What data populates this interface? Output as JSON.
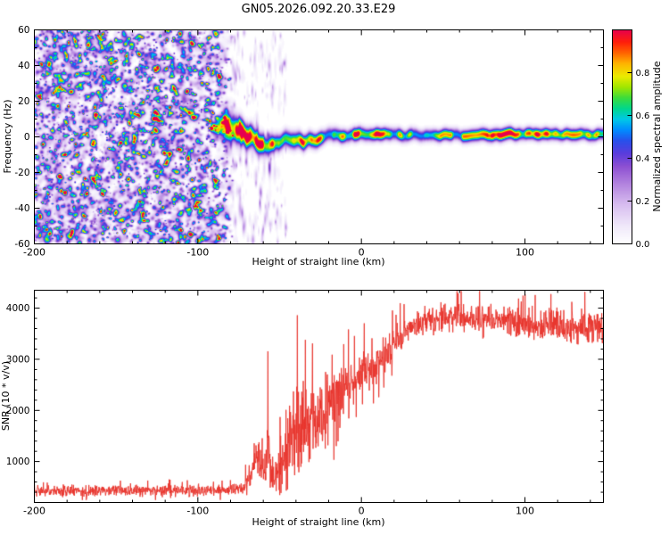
{
  "chart_data": [
    {
      "type": "heatmap",
      "title": "GN05.2026.092.20.33.E29",
      "xlabel": "Height of straight line (km)",
      "ylabel": "Frequency (Hz)",
      "xlim": [
        -200,
        148
      ],
      "ylim": [
        -60,
        60
      ],
      "xticks": [
        -200,
        -100,
        0,
        100
      ],
      "yticks": [
        -60,
        -40,
        -20,
        0,
        20,
        40,
        60
      ],
      "x_minor_step": 20,
      "y_minor_step": 10,
      "colorbar": {
        "label": "Normalized spectral amplitude",
        "ticks": [
          0,
          0.2,
          0.4,
          0.6,
          0.8
        ],
        "range": [
          0,
          1
        ],
        "colormap": [
          [
            0.0,
            "#ffffff"
          ],
          [
            0.08,
            "#f0e9fa"
          ],
          [
            0.18,
            "#d8bef0"
          ],
          [
            0.28,
            "#b282de"
          ],
          [
            0.36,
            "#8c50d2"
          ],
          [
            0.42,
            "#5a3cdc"
          ],
          [
            0.48,
            "#2850eb"
          ],
          [
            0.53,
            "#008cff"
          ],
          [
            0.58,
            "#00c8e6"
          ],
          [
            0.63,
            "#00d78c"
          ],
          [
            0.68,
            "#3cdc3c"
          ],
          [
            0.73,
            "#a0e600"
          ],
          [
            0.78,
            "#ebeb00"
          ],
          [
            0.84,
            "#ffb400"
          ],
          [
            0.89,
            "#ff6400"
          ],
          [
            0.94,
            "#ff1e0a"
          ],
          [
            1.0,
            "#e60050"
          ]
        ]
      },
      "noise_field": {
        "x_range": [
          -200,
          -78
        ],
        "taper_start": -88,
        "wash_count": 900,
        "speckle_count": 5200,
        "amp_max": 0.55,
        "sparse": {
          "x_range": [
            -80,
            -46
          ],
          "count": 260,
          "amp_max": 0.2
        }
      },
      "hotspots": [
        {
          "x": -126,
          "f": 10,
          "amp": 0.85,
          "r": 2.6
        },
        {
          "x": -129,
          "f": 7,
          "amp": 0.5,
          "r": 2.0
        },
        {
          "x": -123,
          "f": 12,
          "amp": 0.45,
          "r": 1.8
        },
        {
          "x": -173,
          "f": -20,
          "amp": 0.5,
          "r": 2.0
        },
        {
          "x": -152,
          "f": 38,
          "amp": 0.45,
          "r": 1.8
        },
        {
          "x": -110,
          "f": -42,
          "amp": 0.45,
          "r": 1.8
        }
      ],
      "echo_trace": {
        "start_km": -92,
        "wiggle": {
          "amp_far": 2.0,
          "amp_mid": 1.2,
          "amp_near": 0.8
        },
        "center_points": [
          [
            -92,
            7
          ],
          [
            -89,
            6.5
          ],
          [
            -86,
            6
          ],
          [
            -83,
            5
          ],
          [
            -80,
            4
          ],
          [
            -77,
            3
          ],
          [
            -74,
            2
          ],
          [
            -71,
            1
          ],
          [
            -68,
            0
          ],
          [
            -65,
            -1.5
          ],
          [
            -62,
            -2.5
          ],
          [
            -59,
            -3.5
          ],
          [
            -56,
            -4
          ],
          [
            -53,
            -4.5
          ],
          [
            -50,
            -4.5
          ],
          [
            -47,
            -4
          ],
          [
            -44,
            -3.5
          ],
          [
            -41,
            -3
          ],
          [
            -38,
            -2.5
          ],
          [
            -35,
            -2.5
          ],
          [
            -32,
            -2
          ],
          [
            -29,
            -1.5
          ],
          [
            -26,
            -1
          ],
          [
            -23,
            -1
          ],
          [
            -20,
            -0.5
          ],
          [
            -17,
            -0.5
          ],
          [
            -14,
            0
          ],
          [
            -11,
            0.5
          ],
          [
            -8,
            0.5
          ],
          [
            -5,
            1
          ],
          [
            -2,
            1
          ],
          [
            1,
            1.2
          ],
          [
            5,
            1
          ],
          [
            10,
            1.2
          ],
          [
            15,
            1
          ],
          [
            20,
            1.3
          ],
          [
            25,
            1
          ],
          [
            30,
            1.2
          ],
          [
            35,
            1
          ],
          [
            40,
            1.3
          ],
          [
            45,
            1
          ],
          [
            50,
            1.2
          ],
          [
            55,
            1
          ],
          [
            60,
            1.2
          ],
          [
            65,
            1
          ],
          [
            70,
            1.2
          ],
          [
            75,
            1
          ],
          [
            80,
            1.2
          ],
          [
            85,
            1
          ],
          [
            90,
            1.2
          ],
          [
            95,
            1
          ],
          [
            100,
            1.2
          ],
          [
            105,
            1
          ],
          [
            110,
            1.2
          ],
          [
            115,
            1
          ],
          [
            120,
            1.2
          ],
          [
            125,
            1
          ],
          [
            130,
            1.2
          ],
          [
            135,
            1
          ],
          [
            140,
            1.2
          ],
          [
            145,
            1
          ],
          [
            148,
            1
          ]
        ],
        "sigma_points": [
          [
            -92,
            2.5
          ],
          [
            -86,
            4
          ],
          [
            -82,
            5.5
          ],
          [
            -78,
            5
          ],
          [
            -74,
            4.5
          ],
          [
            -70,
            4
          ],
          [
            -66,
            4
          ],
          [
            -62,
            3.8
          ],
          [
            -58,
            3.5
          ],
          [
            -54,
            3.2
          ],
          [
            -50,
            3
          ],
          [
            -45,
            3
          ],
          [
            -40,
            3
          ],
          [
            -35,
            2.8
          ],
          [
            -30,
            2.7
          ],
          [
            -25,
            2.6
          ],
          [
            -20,
            2.5
          ],
          [
            -15,
            2.5
          ],
          [
            -10,
            2.4
          ],
          [
            -5,
            2.4
          ],
          [
            0,
            2.4
          ],
          [
            10,
            2.3
          ],
          [
            20,
            2.3
          ],
          [
            40,
            2.2
          ],
          [
            60,
            2.2
          ],
          [
            80,
            2.3
          ],
          [
            100,
            2.2
          ],
          [
            120,
            2.2
          ],
          [
            148,
            2.2
          ]
        ],
        "intensity_points": [
          [
            -92,
            0.55
          ],
          [
            -89,
            0.8
          ],
          [
            -86,
            0.95
          ],
          [
            -83,
            1.0
          ],
          [
            -80,
            0.95
          ],
          [
            -77,
            0.9
          ],
          [
            -74,
            0.95
          ],
          [
            -71,
            1.0
          ],
          [
            -68,
            0.95
          ],
          [
            -65,
            0.95
          ],
          [
            -62,
            0.9
          ],
          [
            -59,
            0.95
          ],
          [
            -56,
            1.0
          ],
          [
            -53,
            0.95
          ],
          [
            -50,
            0.95
          ],
          [
            -47,
            0.9
          ],
          [
            -44,
            0.95
          ],
          [
            -41,
            1.0
          ],
          [
            -38,
            0.95
          ],
          [
            -35,
            0.9
          ],
          [
            -32,
            0.8
          ],
          [
            -29,
            0.75
          ],
          [
            -26,
            0.8
          ],
          [
            -23,
            0.72
          ],
          [
            -20,
            0.7
          ],
          [
            -17,
            0.75
          ],
          [
            -14,
            0.7
          ],
          [
            -11,
            0.72
          ],
          [
            -8,
            0.78
          ],
          [
            -5,
            0.88
          ],
          [
            -2,
            0.95
          ],
          [
            1,
            0.95
          ],
          [
            4,
            0.9
          ],
          [
            7,
            0.88
          ],
          [
            10,
            0.85
          ],
          [
            13,
            0.78
          ],
          [
            16,
            0.72
          ],
          [
            19,
            0.7
          ],
          [
            22,
            0.72
          ],
          [
            25,
            0.7
          ],
          [
            28,
            0.68
          ],
          [
            31,
            0.7
          ],
          [
            34,
            0.72
          ],
          [
            37,
            0.7
          ],
          [
            40,
            0.68
          ],
          [
            43,
            0.7
          ],
          [
            46,
            0.72
          ],
          [
            49,
            0.7
          ],
          [
            52,
            0.68
          ],
          [
            55,
            0.7
          ],
          [
            58,
            0.72
          ],
          [
            61,
            0.7
          ],
          [
            64,
            0.72
          ],
          [
            67,
            0.7
          ],
          [
            70,
            0.68
          ],
          [
            73,
            0.7
          ],
          [
            76,
            0.75
          ],
          [
            79,
            0.82
          ],
          [
            82,
            0.9
          ],
          [
            85,
            0.95
          ],
          [
            88,
            0.92
          ],
          [
            91,
            0.85
          ],
          [
            94,
            0.78
          ],
          [
            97,
            0.72
          ],
          [
            100,
            0.7
          ],
          [
            103,
            0.75
          ],
          [
            106,
            0.85
          ],
          [
            109,
            0.92
          ],
          [
            112,
            0.88
          ],
          [
            115,
            0.78
          ],
          [
            118,
            0.72
          ],
          [
            121,
            0.7
          ],
          [
            124,
            0.68
          ],
          [
            127,
            0.7
          ],
          [
            130,
            0.72
          ],
          [
            133,
            0.7
          ],
          [
            136,
            0.68
          ],
          [
            139,
            0.7
          ],
          [
            142,
            0.72
          ],
          [
            145,
            0.7
          ],
          [
            148,
            0.68
          ]
        ]
      }
    },
    {
      "type": "line",
      "xlabel": "Height of straight line (km)",
      "ylabel": "SNR (10 * v/v)",
      "xlim": [
        -200,
        148
      ],
      "ylim": [
        200,
        4350
      ],
      "xticks": [
        -200,
        -100,
        0,
        100
      ],
      "yticks": [
        1000,
        2000,
        3000,
        4000
      ],
      "x_minor_step": 20,
      "y_minor_step": 200,
      "line_color": "#e8322a",
      "envelope": [
        [
          -200,
          420,
          110
        ],
        [
          -160,
          420,
          110
        ],
        [
          -120,
          420,
          110
        ],
        [
          -100,
          420,
          110
        ],
        [
          -90,
          425,
          110
        ],
        [
          -82,
          430,
          110
        ],
        [
          -76,
          450,
          120
        ],
        [
          -72,
          480,
          130
        ],
        [
          -68,
          700,
          250
        ],
        [
          -65,
          1000,
          400
        ],
        [
          -63,
          1200,
          500
        ],
        [
          -61,
          900,
          400
        ],
        [
          -59,
          750,
          320
        ],
        [
          -57,
          1300,
          850
        ],
        [
          -55,
          900,
          500
        ],
        [
          -53,
          620,
          300
        ],
        [
          -51,
          800,
          500
        ],
        [
          -49,
          1050,
          650
        ],
        [
          -47,
          820,
          420
        ],
        [
          -45,
          1200,
          800
        ],
        [
          -43,
          1600,
          900
        ],
        [
          -41,
          1450,
          900
        ],
        [
          -39,
          1750,
          1000
        ],
        [
          -37,
          1500,
          900
        ],
        [
          -35,
          1850,
          950
        ],
        [
          -33,
          1600,
          850
        ],
        [
          -31,
          1800,
          800
        ],
        [
          -29,
          1950,
          800
        ],
        [
          -27,
          1800,
          720
        ],
        [
          -25,
          2050,
          700
        ],
        [
          -23,
          1900,
          680
        ],
        [
          -21,
          2100,
          650
        ],
        [
          -19,
          2200,
          620
        ],
        [
          -17,
          2100,
          600
        ],
        [
          -15,
          2300,
          560
        ],
        [
          -13,
          2380,
          550
        ],
        [
          -11,
          2330,
          520
        ],
        [
          -9,
          2480,
          500
        ],
        [
          -7,
          2530,
          460
        ],
        [
          -5,
          2600,
          450
        ],
        [
          -3,
          2550,
          430
        ],
        [
          -1,
          2680,
          420
        ],
        [
          2,
          2750,
          400
        ],
        [
          6,
          2840,
          380
        ],
        [
          10,
          2940,
          380
        ],
        [
          14,
          3090,
          350
        ],
        [
          18,
          3230,
          330
        ],
        [
          22,
          3340,
          320
        ],
        [
          26,
          3490,
          300
        ],
        [
          30,
          3590,
          280
        ],
        [
          35,
          3690,
          270
        ],
        [
          40,
          3770,
          260
        ],
        [
          45,
          3800,
          260
        ],
        [
          50,
          3820,
          260
        ],
        [
          55,
          3800,
          255
        ],
        [
          60,
          3820,
          250
        ],
        [
          65,
          3800,
          260
        ],
        [
          70,
          3780,
          260
        ],
        [
          75,
          3800,
          255
        ],
        [
          80,
          3810,
          250
        ],
        [
          85,
          3780,
          260
        ],
        [
          90,
          3750,
          270
        ],
        [
          95,
          3720,
          280
        ],
        [
          100,
          3700,
          280
        ],
        [
          105,
          3650,
          300
        ],
        [
          110,
          3620,
          310
        ],
        [
          115,
          3670,
          300
        ],
        [
          120,
          3700,
          300
        ],
        [
          125,
          3650,
          300
        ],
        [
          130,
          3600,
          315
        ],
        [
          135,
          3640,
          310
        ],
        [
          140,
          3610,
          320
        ],
        [
          148,
          3550,
          330
        ]
      ]
    }
  ]
}
